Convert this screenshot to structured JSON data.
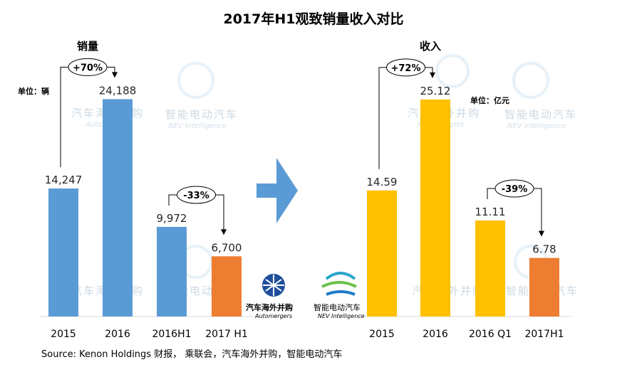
{
  "title": "2017年H1观致销量收入对比",
  "source": "Source: Kenon Holdings 财报， 乘联会，汽车海外并购，智能电动汽车",
  "watermarks": {
    "automergers_cn": "汽车海外并购",
    "automergers_en": "Automergers",
    "nev_cn": "智能电动汽车",
    "nev_en": "NEV Intelligence"
  },
  "colors": {
    "sales_bar": "#5b9bd5",
    "revenue_bar": "#ffc000",
    "highlight_bar": "#ed7d31",
    "arrow": "#5b9bd5"
  },
  "chart_data": [
    {
      "type": "bar",
      "title": "销量",
      "unit": "单位：辆",
      "categories": [
        "2015",
        "2016",
        "2016H1",
        "2017 H1"
      ],
      "values": [
        14247,
        24188,
        9972,
        6700
      ],
      "value_labels": [
        "14,247",
        "24,188",
        "9,972",
        "6,700"
      ],
      "highlight_index": 3,
      "ylim": [
        0,
        30000
      ],
      "annotations": [
        {
          "text": "+70%",
          "from": 0,
          "to": 1
        },
        {
          "text": "-33%",
          "from": 2,
          "to": 3
        }
      ]
    },
    {
      "type": "bar",
      "title": "收入",
      "unit": "单位：亿元",
      "categories": [
        "2015",
        "2016",
        "2016 Q1",
        "2017H1"
      ],
      "values": [
        14.59,
        25.12,
        11.11,
        6.78
      ],
      "value_labels": [
        "14.59",
        "25.12",
        "11.11",
        "6.78"
      ],
      "highlight_index": 3,
      "ylim": [
        0,
        31.2
      ],
      "annotations": [
        {
          "text": "+72%",
          "from": 0,
          "to": 1
        },
        {
          "text": "-39%",
          "from": 2,
          "to": 3
        }
      ]
    }
  ]
}
